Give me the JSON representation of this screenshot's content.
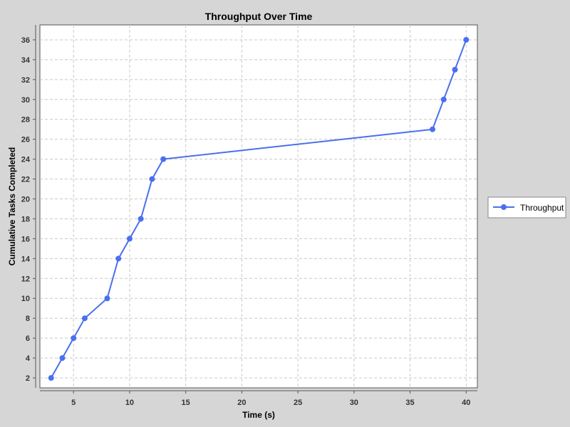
{
  "chart_data": {
    "type": "line",
    "title": "Throughput Over Time",
    "xlabel": "Time (s)",
    "ylabel": "Cumulative Tasks Completed",
    "xlim": [
      2,
      41
    ],
    "ylim": [
      1,
      37.5
    ],
    "x_ticks": [
      5,
      10,
      15,
      20,
      25,
      30,
      35,
      40
    ],
    "y_ticks": [
      2,
      4,
      6,
      8,
      10,
      12,
      14,
      16,
      18,
      20,
      22,
      24,
      26,
      28,
      30,
      32,
      34,
      36
    ],
    "grid": true,
    "legend_position": "right",
    "series": [
      {
        "name": "Throughput",
        "color": "#4a6ff0",
        "x": [
          3,
          4,
          5,
          6,
          8,
          9,
          10,
          11,
          12,
          13,
          37,
          38,
          39,
          40
        ],
        "y": [
          2,
          4,
          6,
          8,
          10,
          14,
          16,
          18,
          22,
          24,
          27,
          30,
          33,
          36
        ]
      }
    ]
  },
  "colors": {
    "background": "#d6d6d6",
    "plot_background": "#ffffff",
    "grid": "#c8c8c8",
    "axis": "#555555"
  }
}
